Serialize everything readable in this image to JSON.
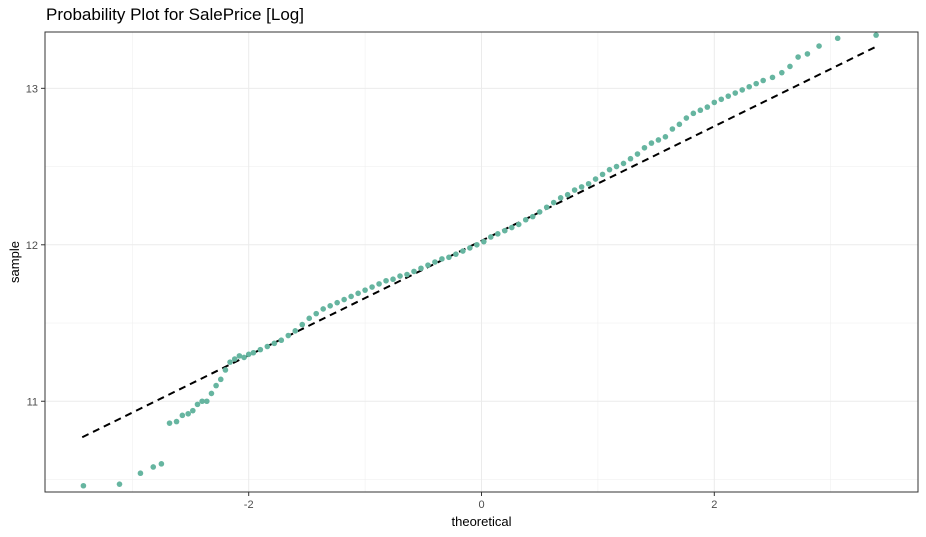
{
  "chart_data": {
    "type": "scatter",
    "title": "Probability Plot for SalePrice [Log]",
    "xlabel": "theoretical",
    "ylabel": "sample",
    "xlim": [
      -3.75,
      3.75
    ],
    "ylim": [
      10.42,
      13.36
    ],
    "x_ticks": [
      -2,
      0,
      2
    ],
    "y_ticks": [
      11,
      12,
      13
    ],
    "grid": true,
    "point_color": "#66b5a0",
    "line_color": "#000000",
    "reference_line": {
      "style": "dashed",
      "x": [
        -3.43,
        3.4
      ],
      "y": [
        10.77,
        13.27
      ]
    },
    "series": [
      {
        "x": [
          -3.42,
          -3.11,
          -2.93,
          -2.82,
          -2.75,
          -2.68,
          -2.62,
          -2.57,
          -2.52,
          -2.48,
          -2.44,
          -2.4,
          -2.36,
          -2.32,
          -2.28,
          -2.24,
          -2.2,
          -2.16,
          -2.12,
          -2.08,
          -2.04,
          -2.0,
          -1.96,
          -1.9,
          -1.84,
          -1.78,
          -1.72,
          -1.66,
          -1.6,
          -1.54,
          -1.48,
          -1.42,
          -1.36,
          -1.3,
          -1.24,
          -1.18,
          -1.12,
          -1.06,
          -1.0,
          -0.94,
          -0.88,
          -0.82,
          -0.76,
          -0.7,
          -0.64,
          -0.58,
          -0.52,
          -0.46,
          -0.4,
          -0.34,
          -0.28,
          -0.22,
          -0.16,
          -0.1,
          -0.04,
          0.02,
          0.08,
          0.14,
          0.2,
          0.26,
          0.32,
          0.38,
          0.44,
          0.5,
          0.56,
          0.62,
          0.68,
          0.74,
          0.8,
          0.86,
          0.92,
          0.98,
          1.04,
          1.1,
          1.16,
          1.22,
          1.28,
          1.34,
          1.4,
          1.46,
          1.52,
          1.58,
          1.64,
          1.7,
          1.76,
          1.82,
          1.88,
          1.94,
          2.0,
          2.06,
          2.12,
          2.18,
          2.24,
          2.3,
          2.36,
          2.42,
          2.5,
          2.58,
          2.65,
          2.72,
          2.8,
          2.9,
          3.06,
          3.39
        ],
        "y": [
          10.46,
          10.47,
          10.54,
          10.58,
          10.6,
          10.86,
          10.87,
          10.91,
          10.92,
          10.94,
          10.98,
          11.0,
          11.0,
          11.05,
          11.1,
          11.14,
          11.2,
          11.25,
          11.27,
          11.29,
          11.28,
          11.3,
          11.31,
          11.33,
          11.35,
          11.37,
          11.39,
          11.42,
          11.45,
          11.49,
          11.53,
          11.56,
          11.59,
          11.61,
          11.63,
          11.65,
          11.67,
          11.69,
          11.71,
          11.73,
          11.75,
          11.77,
          11.78,
          11.8,
          11.81,
          11.83,
          11.85,
          11.87,
          11.89,
          11.91,
          11.92,
          11.94,
          11.96,
          11.98,
          12.0,
          12.02,
          12.05,
          12.07,
          12.09,
          12.11,
          12.13,
          12.16,
          12.18,
          12.21,
          12.24,
          12.27,
          12.3,
          12.32,
          12.35,
          12.37,
          12.39,
          12.42,
          12.45,
          12.48,
          12.5,
          12.52,
          12.55,
          12.58,
          12.62,
          12.65,
          12.67,
          12.69,
          12.74,
          12.77,
          12.81,
          12.84,
          12.86,
          12.88,
          12.91,
          12.93,
          12.95,
          12.97,
          12.99,
          13.01,
          13.03,
          13.05,
          13.07,
          13.1,
          13.14,
          13.2,
          13.22,
          13.27,
          13.32,
          13.34
        ]
      }
    ]
  }
}
